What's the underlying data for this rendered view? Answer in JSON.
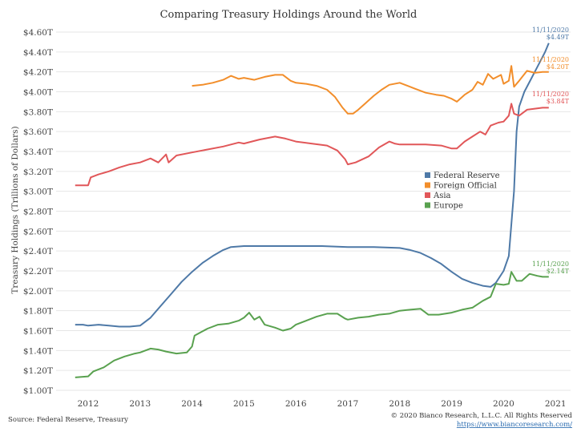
{
  "chart_data": {
    "type": "line",
    "title": "Comparing Treasury Holdings Around the World",
    "ylabel": "Treasury Holdings (Trillions of Dollars)",
    "xlabel": "",
    "xlim": [
      2011.75,
      2021.0
    ],
    "ylim": [
      1.0,
      4.6
    ],
    "y_ticks": [
      1.0,
      1.2,
      1.4,
      1.6,
      1.8,
      2.0,
      2.2,
      2.4,
      2.6,
      2.8,
      3.0,
      3.2,
      3.4,
      3.6,
      3.8,
      4.0,
      4.2,
      4.4,
      4.6
    ],
    "y_tick_labels": [
      "$1.00T",
      "$1.20T",
      "$1.40T",
      "$1.60T",
      "$1.80T",
      "$2.00T",
      "$2.20T",
      "$2.40T",
      "$2.60T",
      "$2.80T",
      "$3.00T",
      "$3.20T",
      "$3.40T",
      "$3.60T",
      "$3.80T",
      "$4.00T",
      "$4.20T",
      "$4.40T",
      "$4.60T"
    ],
    "x_ticks": [
      2012,
      2013,
      2014,
      2015,
      2016,
      2017,
      2018,
      2019,
      2020,
      2021
    ],
    "x_tick_labels": [
      "2012",
      "2013",
      "2014",
      "2015",
      "2016",
      "2017",
      "2018",
      "2019",
      "2020",
      "2021"
    ],
    "grid": "horizontal",
    "legend_position": "center-right",
    "series": [
      {
        "name": "Federal Reserve",
        "color": "#4e79a7",
        "points": [
          [
            2011.75,
            1.66
          ],
          [
            2011.9,
            1.66
          ],
          [
            2012.0,
            1.65
          ],
          [
            2012.2,
            1.66
          ],
          [
            2012.4,
            1.65
          ],
          [
            2012.6,
            1.64
          ],
          [
            2012.8,
            1.64
          ],
          [
            2013.0,
            1.65
          ],
          [
            2013.2,
            1.73
          ],
          [
            2013.4,
            1.85
          ],
          [
            2013.6,
            1.97
          ],
          [
            2013.8,
            2.09
          ],
          [
            2014.0,
            2.19
          ],
          [
            2014.2,
            2.28
          ],
          [
            2014.4,
            2.35
          ],
          [
            2014.6,
            2.41
          ],
          [
            2014.75,
            2.44
          ],
          [
            2015.0,
            2.45
          ],
          [
            2015.5,
            2.45
          ],
          [
            2016.0,
            2.45
          ],
          [
            2016.5,
            2.45
          ],
          [
            2017.0,
            2.44
          ],
          [
            2017.5,
            2.44
          ],
          [
            2018.0,
            2.43
          ],
          [
            2018.2,
            2.41
          ],
          [
            2018.4,
            2.38
          ],
          [
            2018.6,
            2.33
          ],
          [
            2018.8,
            2.27
          ],
          [
            2019.0,
            2.19
          ],
          [
            2019.2,
            2.12
          ],
          [
            2019.4,
            2.08
          ],
          [
            2019.6,
            2.05
          ],
          [
            2019.75,
            2.04
          ],
          [
            2019.85,
            2.08
          ],
          [
            2020.0,
            2.2
          ],
          [
            2020.1,
            2.35
          ],
          [
            2020.2,
            3.0
          ],
          [
            2020.25,
            3.6
          ],
          [
            2020.3,
            3.85
          ],
          [
            2020.4,
            4.0
          ],
          [
            2020.5,
            4.1
          ],
          [
            2020.6,
            4.2
          ],
          [
            2020.7,
            4.3
          ],
          [
            2020.8,
            4.4
          ],
          [
            2020.87,
            4.49
          ]
        ]
      },
      {
        "name": "Foreign Official",
        "color": "#f28e2b",
        "points": [
          [
            2014.0,
            4.06
          ],
          [
            2014.2,
            4.07
          ],
          [
            2014.4,
            4.09
          ],
          [
            2014.6,
            4.12
          ],
          [
            2014.75,
            4.16
          ],
          [
            2014.9,
            4.13
          ],
          [
            2015.0,
            4.14
          ],
          [
            2015.2,
            4.12
          ],
          [
            2015.4,
            4.15
          ],
          [
            2015.6,
            4.17
          ],
          [
            2015.75,
            4.17
          ],
          [
            2015.9,
            4.11
          ],
          [
            2016.0,
            4.09
          ],
          [
            2016.2,
            4.08
          ],
          [
            2016.4,
            4.06
          ],
          [
            2016.6,
            4.02
          ],
          [
            2016.75,
            3.95
          ],
          [
            2016.9,
            3.84
          ],
          [
            2017.0,
            3.78
          ],
          [
            2017.1,
            3.78
          ],
          [
            2017.2,
            3.82
          ],
          [
            2017.35,
            3.89
          ],
          [
            2017.5,
            3.96
          ],
          [
            2017.65,
            4.02
          ],
          [
            2017.8,
            4.07
          ],
          [
            2018.0,
            4.09
          ],
          [
            2018.1,
            4.07
          ],
          [
            2018.3,
            4.03
          ],
          [
            2018.5,
            3.99
          ],
          [
            2018.7,
            3.97
          ],
          [
            2018.85,
            3.96
          ],
          [
            2019.0,
            3.93
          ],
          [
            2019.1,
            3.9
          ],
          [
            2019.25,
            3.97
          ],
          [
            2019.4,
            4.02
          ],
          [
            2019.5,
            4.1
          ],
          [
            2019.6,
            4.07
          ],
          [
            2019.7,
            4.18
          ],
          [
            2019.8,
            4.13
          ],
          [
            2019.95,
            4.17
          ],
          [
            2020.0,
            4.08
          ],
          [
            2020.1,
            4.11
          ],
          [
            2020.15,
            4.26
          ],
          [
            2020.2,
            4.05
          ],
          [
            2020.3,
            4.11
          ],
          [
            2020.45,
            4.21
          ],
          [
            2020.6,
            4.19
          ],
          [
            2020.75,
            4.2
          ],
          [
            2020.87,
            4.2
          ]
        ]
      },
      {
        "name": "Asia",
        "color": "#e15759",
        "points": [
          [
            2011.75,
            3.06
          ],
          [
            2012.0,
            3.06
          ],
          [
            2012.05,
            3.14
          ],
          [
            2012.2,
            3.17
          ],
          [
            2012.4,
            3.2
          ],
          [
            2012.6,
            3.24
          ],
          [
            2012.8,
            3.27
          ],
          [
            2013.0,
            3.29
          ],
          [
            2013.2,
            3.33
          ],
          [
            2013.35,
            3.29
          ],
          [
            2013.5,
            3.37
          ],
          [
            2013.55,
            3.29
          ],
          [
            2013.7,
            3.36
          ],
          [
            2014.0,
            3.39
          ],
          [
            2014.3,
            3.42
          ],
          [
            2014.6,
            3.45
          ],
          [
            2014.9,
            3.49
          ],
          [
            2015.0,
            3.48
          ],
          [
            2015.3,
            3.52
          ],
          [
            2015.6,
            3.55
          ],
          [
            2015.8,
            3.53
          ],
          [
            2016.0,
            3.5
          ],
          [
            2016.3,
            3.48
          ],
          [
            2016.6,
            3.46
          ],
          [
            2016.8,
            3.41
          ],
          [
            2016.95,
            3.32
          ],
          [
            2017.0,
            3.27
          ],
          [
            2017.15,
            3.29
          ],
          [
            2017.4,
            3.35
          ],
          [
            2017.6,
            3.44
          ],
          [
            2017.8,
            3.5
          ],
          [
            2017.9,
            3.48
          ],
          [
            2018.0,
            3.47
          ],
          [
            2018.2,
            3.47
          ],
          [
            2018.5,
            3.47
          ],
          [
            2018.8,
            3.46
          ],
          [
            2019.0,
            3.43
          ],
          [
            2019.1,
            3.43
          ],
          [
            2019.25,
            3.5
          ],
          [
            2019.4,
            3.55
          ],
          [
            2019.55,
            3.6
          ],
          [
            2019.65,
            3.57
          ],
          [
            2019.75,
            3.66
          ],
          [
            2019.9,
            3.69
          ],
          [
            2020.0,
            3.7
          ],
          [
            2020.1,
            3.76
          ],
          [
            2020.15,
            3.88
          ],
          [
            2020.2,
            3.78
          ],
          [
            2020.3,
            3.76
          ],
          [
            2020.45,
            3.82
          ],
          [
            2020.6,
            3.83
          ],
          [
            2020.75,
            3.84
          ],
          [
            2020.87,
            3.84
          ]
        ]
      },
      {
        "name": "Europe",
        "color": "#59a14f",
        "points": [
          [
            2011.75,
            1.13
          ],
          [
            2012.0,
            1.14
          ],
          [
            2012.1,
            1.19
          ],
          [
            2012.3,
            1.23
          ],
          [
            2012.5,
            1.3
          ],
          [
            2012.7,
            1.34
          ],
          [
            2012.9,
            1.37
          ],
          [
            2013.0,
            1.38
          ],
          [
            2013.2,
            1.42
          ],
          [
            2013.35,
            1.41
          ],
          [
            2013.5,
            1.39
          ],
          [
            2013.7,
            1.37
          ],
          [
            2013.9,
            1.38
          ],
          [
            2014.0,
            1.44
          ],
          [
            2014.05,
            1.55
          ],
          [
            2014.3,
            1.62
          ],
          [
            2014.5,
            1.66
          ],
          [
            2014.7,
            1.67
          ],
          [
            2014.9,
            1.7
          ],
          [
            2015.0,
            1.73
          ],
          [
            2015.1,
            1.78
          ],
          [
            2015.2,
            1.71
          ],
          [
            2015.3,
            1.74
          ],
          [
            2015.4,
            1.66
          ],
          [
            2015.6,
            1.63
          ],
          [
            2015.75,
            1.6
          ],
          [
            2015.9,
            1.62
          ],
          [
            2016.0,
            1.66
          ],
          [
            2016.2,
            1.7
          ],
          [
            2016.4,
            1.74
          ],
          [
            2016.6,
            1.77
          ],
          [
            2016.8,
            1.77
          ],
          [
            2016.95,
            1.72
          ],
          [
            2017.0,
            1.71
          ],
          [
            2017.2,
            1.73
          ],
          [
            2017.4,
            1.74
          ],
          [
            2017.6,
            1.76
          ],
          [
            2017.8,
            1.77
          ],
          [
            2018.0,
            1.8
          ],
          [
            2018.2,
            1.81
          ],
          [
            2018.4,
            1.82
          ],
          [
            2018.55,
            1.76
          ],
          [
            2018.75,
            1.76
          ],
          [
            2019.0,
            1.78
          ],
          [
            2019.2,
            1.81
          ],
          [
            2019.4,
            1.83
          ],
          [
            2019.6,
            1.9
          ],
          [
            2019.75,
            1.94
          ],
          [
            2019.85,
            2.07
          ],
          [
            2020.0,
            2.06
          ],
          [
            2020.1,
            2.07
          ],
          [
            2020.15,
            2.19
          ],
          [
            2020.25,
            2.1
          ],
          [
            2020.35,
            2.1
          ],
          [
            2020.5,
            2.17
          ],
          [
            2020.65,
            2.15
          ],
          [
            2020.75,
            2.14
          ],
          [
            2020.87,
            2.14
          ]
        ]
      }
    ],
    "annotations": [
      {
        "series": "Federal Reserve",
        "date": "11/11/2020",
        "value": "$4.49T",
        "color": "#4e79a7"
      },
      {
        "series": "Foreign Official",
        "date": "11/11/2020",
        "value": "$4.20T",
        "color": "#f28e2b"
      },
      {
        "series": "Asia",
        "date": "11/11/2020",
        "value": "$3.84T",
        "color": "#e15759"
      },
      {
        "series": "Europe",
        "date": "11/11/2020",
        "value": "$2.14T",
        "color": "#59a14f"
      }
    ]
  },
  "footer": {
    "source": "Source: Federal Reserve, Treasury",
    "copyright": "© 2020 Bianco Research, L.L.C. All Rights Reserved",
    "url": "https://www.biancoresearch.com/"
  }
}
